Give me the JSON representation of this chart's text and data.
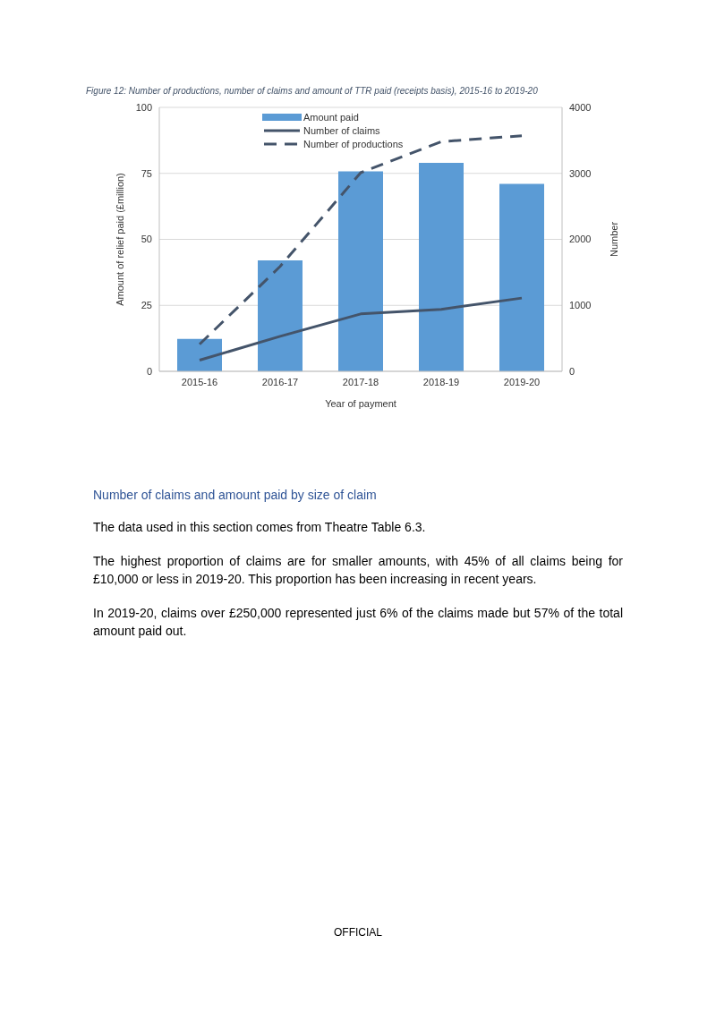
{
  "chart_data": {
    "type": "bar",
    "title": "Figure 12: Number of productions, number of claims and amount of TTR paid (receipts basis), 2015-16 to 2019-20",
    "xlabel": "Year of payment",
    "ylabel": "Amount of relief paid (£million)",
    "y2label": "Number",
    "categories": [
      "2015-16",
      "2016-17",
      "2017-18",
      "2018-19",
      "2019-20"
    ],
    "series": [
      {
        "name": "Amount paid",
        "color": "#5b9bd5",
        "values": [
          12.3,
          42,
          75.8,
          79,
          71
        ]
      },
      {
        "name": "Number of claims",
        "type": "line",
        "axis": "y2",
        "color": "#44546a",
        "line_style": "solid",
        "marker": "none",
        "values": [
          170,
          530,
          870,
          940,
          1110
        ]
      },
      {
        "name": "Number of productions",
        "type": "line",
        "axis": "y2",
        "color": "#44546a",
        "line_style": "dashed",
        "marker": "none",
        "values": [
          410,
          1590,
          3010,
          3480,
          3570
        ]
      }
    ],
    "ylim": [
      0,
      100
    ],
    "yticks": [
      0,
      25,
      50,
      75,
      100
    ],
    "y2lim": [
      0,
      4000
    ],
    "y2ticks": [
      0,
      1000,
      2000,
      3000,
      4000
    ],
    "grid": "y",
    "legend": "top",
    "annotations": [
      "Number of claims and amount paid by size of claim",
      "The data used in this section comes from Theatre Table 6.3.",
      "The highest proportion of claims are for smaller amounts, with 45% of all claims being for £10,000 or less in 2019-20. This proportion has been increasing in recent years.",
      "In 2019-20, claims over £250,000 represented just 6% of the claims made but 57% of the total amount paid out.",
      "OFFICIAL"
    ]
  }
}
